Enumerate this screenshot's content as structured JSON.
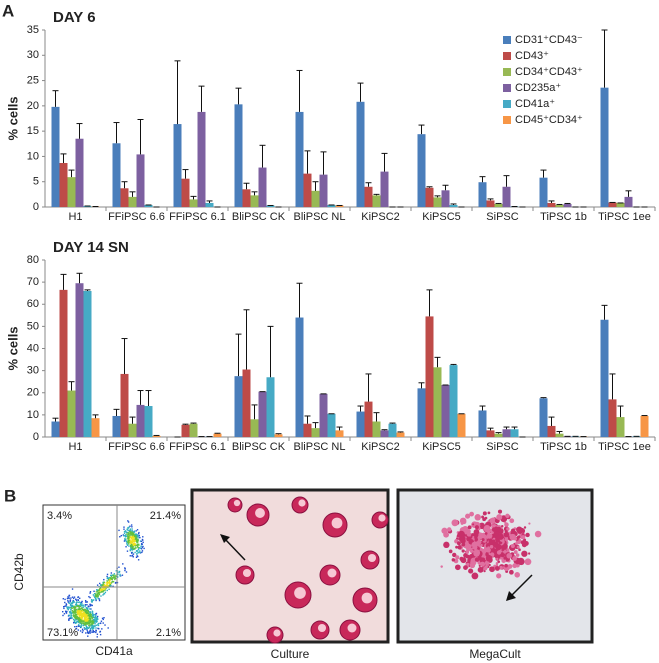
{
  "panels": {
    "a": "A",
    "b": "B"
  },
  "chart_data": [
    {
      "type": "bar",
      "title": "DAY 6",
      "y_label": "% cells",
      "categories": [
        "H1",
        "FFiPSC 6.6",
        "FFiPSC 6.1",
        "BliPSC CK",
        "BliPSC NL",
        "KiPSC2",
        "KiPSC5",
        "SiPSC",
        "TiPSC 1b",
        "TiPSC 1ee"
      ],
      "ylim": [
        0,
        35
      ],
      "yticks": [
        0,
        5,
        10,
        15,
        20,
        25,
        30,
        35
      ],
      "legend": "top-right",
      "series": [
        {
          "name": "CD31⁺CD43⁻",
          "color": "#4a7ebb",
          "values": [
            19.8,
            12.6,
            16.4,
            20.3,
            18.8,
            20.8,
            14.4,
            4.9,
            5.8,
            23.6
          ],
          "errors": [
            3.2,
            4.1,
            12.5,
            3.2,
            8.2,
            3.7,
            1.8,
            1.1,
            1.5,
            11.4
          ]
        },
        {
          "name": "CD43⁺",
          "color": "#be4b48",
          "values": [
            8.7,
            3.7,
            5.6,
            3.5,
            6.6,
            4.0,
            3.8,
            1.3,
            0.8,
            0.9
          ],
          "errors": [
            1.8,
            1.3,
            1.8,
            1.2,
            4.5,
            0.8,
            0.2,
            0.3,
            0.4,
            0
          ]
        },
        {
          "name": "CD34⁺CD43⁺",
          "color": "#98b954",
          "values": [
            5.9,
            2.0,
            1.5,
            2.3,
            3.2,
            2.3,
            1.9,
            0.6,
            0.4,
            0.8
          ],
          "errors": [
            1.4,
            1.0,
            0.6,
            0.7,
            1.8,
            0.2,
            0.3,
            0.1,
            0.1,
            0
          ]
        },
        {
          "name": "CD235a⁺",
          "color": "#7d60a0",
          "values": [
            13.5,
            10.4,
            18.8,
            7.8,
            6.4,
            7.0,
            3.3,
            4.0,
            0.6,
            2.0
          ],
          "errors": [
            3.0,
            6.9,
            5.1,
            4.4,
            4.5,
            3.6,
            1.0,
            2.2,
            0.1,
            1.2
          ]
        },
        {
          "name": "CD41a⁺",
          "color": "#46aac5",
          "values": [
            0.2,
            0.4,
            0.8,
            0.3,
            0.4,
            0,
            0.4,
            0.1,
            0,
            0
          ],
          "errors": [
            0,
            0,
            0.4,
            0,
            0,
            0,
            0.2,
            0,
            0,
            0
          ]
        },
        {
          "name": "CD45⁺CD34⁺",
          "color": "#f79646",
          "values": [
            0.1,
            0,
            0,
            0,
            0.3,
            0,
            0,
            0,
            0,
            0
          ],
          "errors": [
            0,
            0,
            0,
            0,
            0,
            0,
            0,
            0,
            0,
            0
          ]
        }
      ]
    },
    {
      "type": "bar",
      "title": "DAY 14 SN",
      "y_label": "% cells",
      "categories": [
        "H1",
        "FFiPSC 6.6",
        "FFiPSC 6.1",
        "BliPSC CK",
        "BliPSC NL",
        "KiPSC2",
        "KiPSC5",
        "SiPSC",
        "TiPSC 1b",
        "TiPSC 1ee"
      ],
      "ylim": [
        0,
        80
      ],
      "yticks": [
        0,
        10,
        20,
        30,
        40,
        50,
        60,
        70,
        80
      ],
      "series": [
        {
          "color": "#4a7ebb",
          "values": [
            7,
            9.5,
            0,
            27.5,
            54,
            11.5,
            22,
            12,
            17.5,
            53
          ],
          "errors": [
            1.5,
            3,
            0,
            19,
            15.5,
            2.5,
            2.5,
            2,
            0.3,
            6.5
          ]
        },
        {
          "color": "#be4b48",
          "values": [
            66.5,
            28.5,
            5.5,
            30.5,
            6,
            16,
            54.5,
            3,
            5,
            17
          ],
          "errors": [
            7,
            16,
            0.3,
            27,
            3.5,
            12.5,
            12,
            1,
            4,
            11.5
          ]
        },
        {
          "color": "#98b954",
          "values": [
            21,
            6,
            6,
            8,
            4,
            7,
            31.5,
            1.5,
            1.5,
            9
          ],
          "errors": [
            4,
            3,
            0.3,
            6.5,
            2.5,
            4,
            4.5,
            0.5,
            1,
            5
          ]
        },
        {
          "color": "#7d60a0",
          "values": [
            69.5,
            14.5,
            0.2,
            20.5,
            19.5,
            3,
            23.5,
            3.5,
            0.3,
            0.2
          ],
          "errors": [
            4.5,
            6.5,
            0,
            0,
            0,
            0.3,
            0,
            1,
            0,
            0
          ]
        },
        {
          "color": "#46aac5",
          "values": [
            66,
            14,
            0.2,
            27,
            10.5,
            6,
            32.5,
            3.5,
            0.3,
            0.3
          ],
          "errors": [
            0.5,
            7,
            0,
            23,
            0,
            0.3,
            0.3,
            1,
            0,
            0
          ]
        },
        {
          "color": "#f79646",
          "values": [
            8.5,
            0.5,
            1.5,
            1.2,
            3,
            2,
            10.5,
            0,
            0.2,
            9.5
          ],
          "errors": [
            1.5,
            0.2,
            0.2,
            0.3,
            1.5,
            0.3,
            0,
            0,
            0,
            0.2
          ]
        }
      ]
    }
  ],
  "flow": {
    "y_label": "CD42b",
    "x_label": "CD41a",
    "quadrants": [
      "3.4%",
      "21.4%",
      "73.1%",
      "2.1%"
    ]
  },
  "images": [
    {
      "caption": "Culture"
    },
    {
      "caption": "MegaCult"
    }
  ]
}
